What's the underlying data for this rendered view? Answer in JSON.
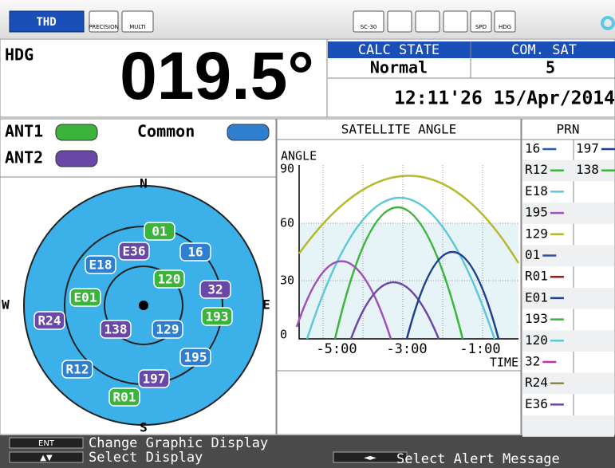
{
  "top_bar": {
    "mode_button": "THD",
    "icons": [
      "PRECISION",
      "MULTI",
      "SC-30",
      "SPD",
      "HDG"
    ]
  },
  "heading": {
    "label": "HDG",
    "value": "019.5°"
  },
  "status": {
    "calc_state_label": "CALC STATE",
    "com_sat_label": "COM. SAT",
    "calc_state": "Normal",
    "com_sat": "5",
    "time": "12:11'26 15/Apr/2014"
  },
  "legend": [
    {
      "label": "ANT1",
      "color": "#3cb43c"
    },
    {
      "label": "Common",
      "color": "#2f7fd0"
    },
    {
      "label": "ANT2",
      "color": "#6a48a8"
    }
  ],
  "polar": {
    "directions": [
      "N",
      "E",
      "S",
      "W"
    ],
    "satellites": [
      {
        "label": "01",
        "group": 0
      },
      {
        "label": "E36",
        "group": 2
      },
      {
        "label": "16",
        "group": 1
      },
      {
        "label": "E18",
        "group": 1
      },
      {
        "label": "120",
        "group": 0
      },
      {
        "label": "E01",
        "group": 0
      },
      {
        "label": "32",
        "group": 2
      },
      {
        "label": "193",
        "group": 0
      },
      {
        "label": "R24",
        "group": 2
      },
      {
        "label": "138",
        "group": 2
      },
      {
        "label": "129",
        "group": 1
      },
      {
        "label": "195",
        "group": 1
      },
      {
        "label": "R12",
        "group": 1
      },
      {
        "label": "197",
        "group": 2
      },
      {
        "label": "R01",
        "group": 0
      }
    ]
  },
  "angle_chart": {
    "title": "SATELLITE ANGLE",
    "y_label": "ANGLE",
    "x_label": "TIME",
    "yticks": [
      "90",
      "60",
      "30",
      "0"
    ],
    "xticks": [
      "-5:00",
      "-3:00",
      "-1:00"
    ]
  },
  "prn": {
    "title": "PRN",
    "entries": [
      {
        "label": "16",
        "color": "#1f5fb0"
      },
      {
        "label": "R12",
        "color": "#3cb43c"
      },
      {
        "label": "E18",
        "color": "#5cc8d8"
      },
      {
        "label": "195",
        "color": "#a050b8"
      },
      {
        "label": "129",
        "color": "#b8b830"
      },
      {
        "label": "01",
        "color": "#2f4fb0"
      },
      {
        "label": "R01",
        "color": "#8a2020"
      },
      {
        "label": "E01",
        "color": "#1f3f90"
      },
      {
        "label": "193",
        "color": "#3cb43c"
      },
      {
        "label": "120",
        "color": "#5cc8d8"
      },
      {
        "label": "32",
        "color": "#c030b0"
      },
      {
        "label": "R24",
        "color": "#8a8a40"
      },
      {
        "label": "E36",
        "color": "#6a48a8"
      },
      {
        "label": "197",
        "color": "#1f3f90"
      },
      {
        "label": "138",
        "color": "#3cb43c"
      }
    ]
  },
  "footer": {
    "keys": [
      {
        "key": "ENT",
        "text": "Change Graphic Display"
      },
      {
        "key": "▲▼",
        "text": "Select Display"
      },
      {
        "key": "◄►",
        "text": "Select Alert Message"
      }
    ]
  }
}
